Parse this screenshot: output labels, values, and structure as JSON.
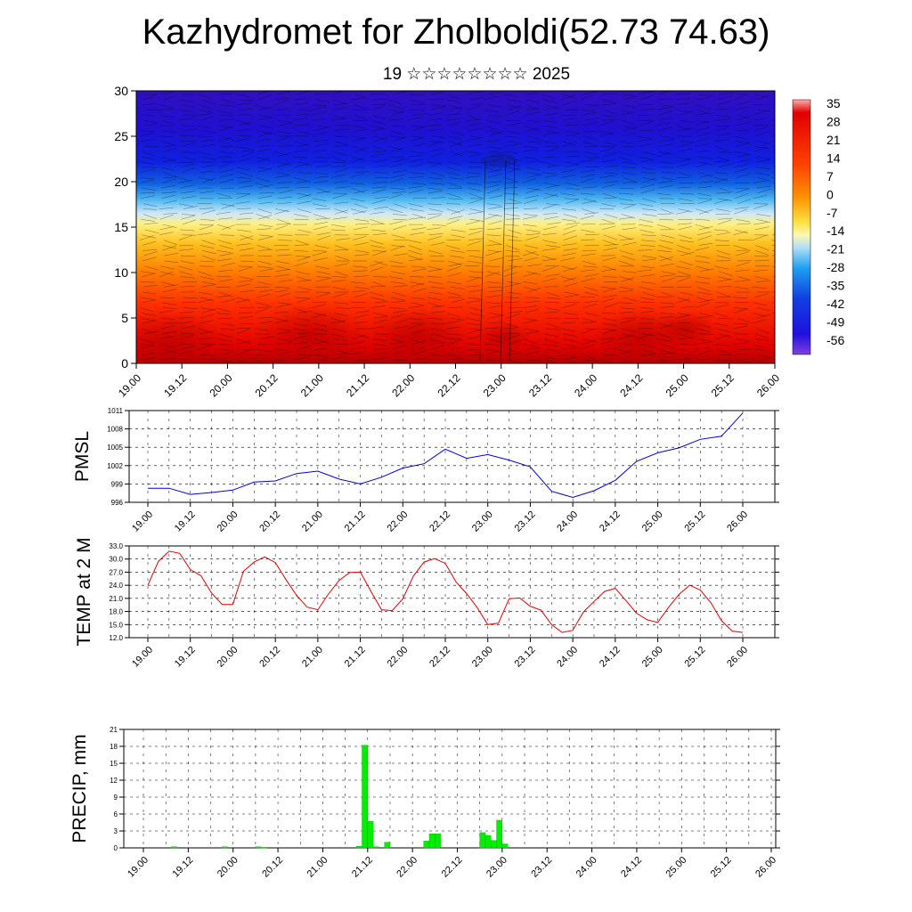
{
  "title": "Kazhydromet for Zholboldi(52.73 74.63)",
  "subtitle": "19 ☆☆☆☆☆☆☆☆ 2025",
  "time_ticks": [
    "19.00",
    "19.12",
    "20.00",
    "20.12",
    "21.00",
    "21.12",
    "22.00",
    "22.12",
    "23.00",
    "23.12",
    "24.00",
    "24.12",
    "25.00",
    "25.12",
    "26.00"
  ],
  "colors": {
    "pmsl": "#0000cc",
    "temp": "#dd0000",
    "precip": "#00ee00"
  },
  "chart_data": [
    {
      "type": "heatmap",
      "title": "",
      "x_categories": [
        "19.00",
        "19.12",
        "20.00",
        "20.12",
        "21.00",
        "21.12",
        "22.00",
        "22.12",
        "23.00",
        "23.12",
        "24.00",
        "24.12",
        "25.00",
        "25.12",
        "26.00"
      ],
      "ylim": [
        0,
        30
      ],
      "yticks": [
        0,
        5,
        10,
        15,
        20,
        25,
        30
      ],
      "colorbar_labels": [
        "35",
        "28",
        "21",
        "14",
        "7",
        "0",
        "-7",
        "-14",
        "-21",
        "-28",
        "-35",
        "-42",
        "-49",
        "-56"
      ],
      "colorscale": "blue (upper levels, about -56) to yellow (about 15) to red (surface, about 30)",
      "overlay": "wind streamlines"
    },
    {
      "type": "line",
      "ylabel": "PMSL",
      "ylim": [
        996,
        1011
      ],
      "yticks": [
        996,
        999,
        1002,
        1005,
        1008,
        1011
      ],
      "x_index_range": [
        0,
        14
      ],
      "x": [
        0,
        0.5,
        1,
        1.5,
        2,
        2.5,
        3,
        3.5,
        4,
        4.5,
        5,
        5.5,
        6,
        6.5,
        7,
        7.5,
        8,
        8.5,
        9,
        9.5,
        10,
        10.5,
        11,
        11.5,
        12,
        12.5,
        13,
        13.5,
        14
      ],
      "values": [
        998.3,
        998.3,
        997.3,
        997.6,
        998.0,
        999.3,
        999.5,
        1000.7,
        1001.1,
        999.8,
        999.0,
        1000.1,
        1001.6,
        1002.3,
        1004.7,
        1003.2,
        1003.8,
        1002.9,
        1001.8,
        997.8,
        996.8,
        997.9,
        999.6,
        1002.7,
        1004.1,
        1004.9,
        1006.3,
        1006.8,
        1010.6
      ],
      "values_extra": "series_values"
    },
    {
      "type": "line",
      "ylabel": "TEMP at 2 M",
      "ylim": [
        12.0,
        33.0
      ],
      "yticks": [
        "12.0",
        "15.0",
        "18.0",
        "21.0",
        "24.0",
        "27.0",
        "30.0",
        "33.0"
      ],
      "x": [
        0,
        0.25,
        0.5,
        0.75,
        1,
        1.25,
        1.5,
        1.75,
        2,
        2.25,
        2.5,
        2.75,
        3,
        3.25,
        3.5,
        3.75,
        4,
        4.25,
        4.5,
        4.75,
        5,
        5.25,
        5.5,
        5.75,
        6,
        6.25,
        6.5,
        6.75,
        7,
        7.25,
        7.5,
        7.75,
        8,
        8.25,
        8.5,
        8.75,
        9,
        9.25,
        9.5,
        9.75,
        10,
        10.25,
        10.5,
        10.75,
        11,
        11.25,
        11.5,
        11.75,
        12,
        12.25,
        12.5,
        12.75,
        13,
        13.25,
        13.5,
        13.75,
        14
      ],
      "values": [
        24.0,
        29.5,
        31.8,
        31.3,
        27.6,
        26.2,
        22.2,
        19.6,
        19.6,
        27.2,
        29.3,
        30.5,
        29.2,
        25.3,
        21.7,
        19.0,
        18.4,
        22.0,
        25.1,
        26.9,
        27.0,
        22.6,
        18.4,
        18.2,
        20.9,
        26.1,
        29.3,
        30.1,
        29.0,
        24.8,
        22.1,
        18.9,
        15.0,
        15.3,
        20.9,
        21.1,
        19.2,
        18.3,
        15.0,
        13.2,
        13.7,
        17.9,
        20.3,
        22.6,
        23.3,
        20.5,
        17.6,
        16.1,
        15.5,
        18.9,
        21.9,
        24.0,
        22.9,
        20.0,
        15.9,
        13.5,
        13.2
      ]
    },
    {
      "type": "bar",
      "ylabel": "PRECIP, mm",
      "ylim": [
        0,
        21
      ],
      "yticks": [
        0,
        3,
        6,
        9,
        12,
        15,
        18,
        21
      ],
      "bins_per_day": 8,
      "values": [
        0,
        0,
        0,
        0,
        0,
        0.2,
        0,
        0,
        0,
        0,
        0,
        0,
        0,
        0,
        0.2,
        0,
        0,
        0,
        0,
        0,
        0.2,
        0.1,
        0,
        0,
        0,
        0,
        0,
        0,
        0,
        0,
        0,
        0,
        0,
        0,
        0,
        0,
        0,
        0,
        0.3,
        18.2,
        4.7,
        0.2,
        0,
        1.0,
        0,
        0,
        0,
        0,
        0,
        0,
        1.2,
        2.5,
        2.5,
        0,
        0,
        0,
        0,
        0,
        0,
        0,
        2.7,
        2.2,
        1.3,
        4.9,
        0.7,
        0,
        0,
        0,
        0,
        0,
        0,
        0,
        0,
        0,
        0,
        0,
        0
      ]
    }
  ]
}
